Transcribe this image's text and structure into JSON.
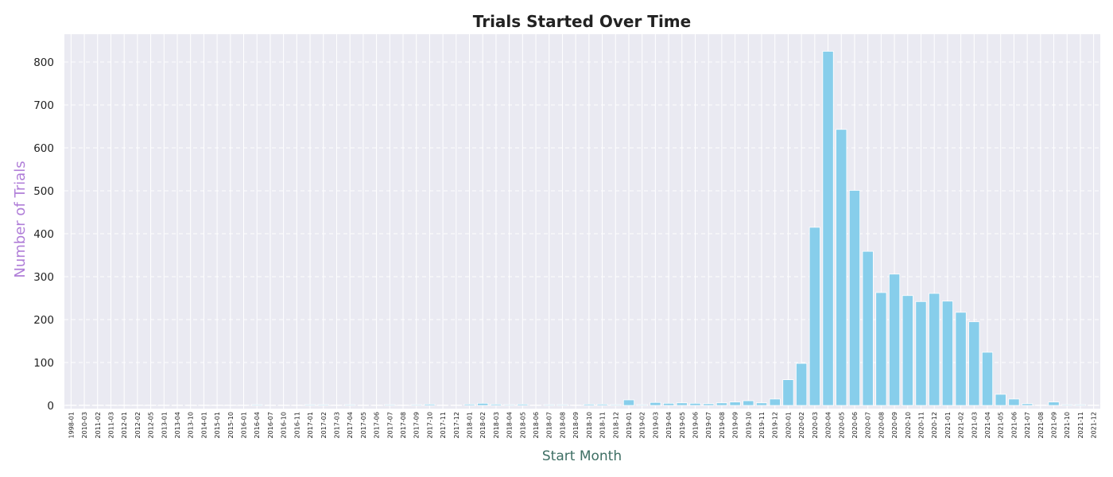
{
  "chart_data": {
    "type": "bar",
    "title": "Trials Started Over Time",
    "xlabel": "Start Month",
    "ylabel": "Number of Trials",
    "ylim": [
      0,
      870
    ],
    "yticks": [
      0,
      100,
      200,
      300,
      400,
      500,
      600,
      700,
      800
    ],
    "grid": true,
    "colors": {
      "bar": "#87ceeb",
      "bar_edge": "#ffffff",
      "plot_bg": "#eaeaf2",
      "grid": "#ffffff",
      "title": "#222222",
      "ylabel": "#b07ed8",
      "xlabel": "#3e6f64"
    },
    "categories": [
      "1998-01",
      "2010-03",
      "2011-02",
      "2011-03",
      "2012-01",
      "2012-02",
      "2012-05",
      "2013-01",
      "2013-04",
      "2013-10",
      "2014-01",
      "2015-01",
      "2015-10",
      "2016-01",
      "2016-04",
      "2016-07",
      "2016-10",
      "2016-11",
      "2017-01",
      "2017-02",
      "2017-03",
      "2017-04",
      "2017-05",
      "2017-06",
      "2017-07",
      "2017-08",
      "2017-09",
      "2017-10",
      "2017-11",
      "2017-12",
      "2018-01",
      "2018-02",
      "2018-03",
      "2018-04",
      "2018-05",
      "2018-06",
      "2018-07",
      "2018-08",
      "2018-09",
      "2018-10",
      "2018-11",
      "2018-12",
      "2019-01",
      "2019-02",
      "2019-03",
      "2019-04",
      "2019-05",
      "2019-06",
      "2019-07",
      "2019-08",
      "2019-09",
      "2019-10",
      "2019-11",
      "2019-12",
      "2020-01",
      "2020-02",
      "2020-03",
      "2020-04",
      "2020-05",
      "2020-06",
      "2020-07",
      "2020-08",
      "2020-09",
      "2020-10",
      "2020-11",
      "2020-12",
      "2021-01",
      "2021-02",
      "2021-03",
      "2021-04",
      "2021-05",
      "2021-06",
      "2021-07",
      "2021-08",
      "2021-09",
      "2021-10",
      "2021-11",
      "2021-12"
    ],
    "values": [
      1,
      1,
      1,
      1,
      1,
      1,
      1,
      1,
      1,
      1,
      1,
      1,
      1,
      1,
      2,
      1,
      1,
      1,
      2,
      2,
      1,
      2,
      1,
      1,
      2,
      1,
      2,
      3,
      1,
      1,
      3,
      5,
      3,
      2,
      3,
      1,
      2,
      2,
      1,
      3,
      3,
      2,
      13,
      2,
      7,
      5,
      6,
      5,
      4,
      6,
      8,
      11,
      6,
      15,
      60,
      98,
      415,
      825,
      643,
      501,
      359,
      263,
      306,
      256,
      242,
      261,
      243,
      217,
      195,
      124,
      26,
      15,
      4,
      1,
      8,
      2,
      2,
      1
    ]
  }
}
